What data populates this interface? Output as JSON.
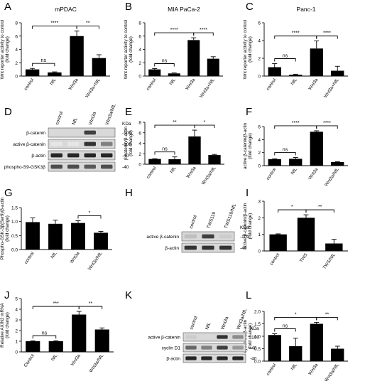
{
  "chart_data": [
    {
      "letter": "A",
      "type": "bar",
      "title": "mPDAC",
      "ylabel": [
        "Wnt reporter activity to control",
        "(fold change)"
      ],
      "categories": [
        "control",
        "NfL",
        "Wnt3a",
        "Wnt3a+NfL"
      ],
      "values": [
        1.0,
        0.55,
        6.0,
        2.7
      ],
      "errors": [
        0.15,
        0.08,
        0.75,
        0.5
      ],
      "ylim": [
        0,
        8
      ],
      "yticks": [
        0,
        2,
        4,
        6,
        8
      ],
      "brackets": [
        {
          "from": 0,
          "to": 1,
          "label": "ns"
        },
        {
          "from": 0,
          "to": 2,
          "label": "****"
        },
        {
          "from": 2,
          "to": 3,
          "label": "**"
        }
      ]
    },
    {
      "letter": "B",
      "type": "bar",
      "title": "MIA PaCa-2",
      "ylabel": [
        "Wnt reporter activity to control",
        "(fold change)"
      ],
      "categories": [
        "control",
        "NfL",
        "Wnt3a",
        "Wnt3a+NfL"
      ],
      "values": [
        1.0,
        0.4,
        5.4,
        2.6
      ],
      "errors": [
        0.12,
        0.07,
        0.35,
        0.3
      ],
      "ylim": [
        0,
        8
      ],
      "yticks": [
        0,
        2,
        4,
        6,
        8
      ],
      "brackets": [
        {
          "from": 0,
          "to": 1,
          "label": "ns"
        },
        {
          "from": 0,
          "to": 2,
          "label": "****"
        },
        {
          "from": 2,
          "to": 3,
          "label": "****"
        }
      ]
    },
    {
      "letter": "C",
      "type": "bar",
      "title": "Panc-1",
      "ylabel": [
        "Wnt reporter activity to control",
        "(fold change)"
      ],
      "categories": [
        "control",
        "NfL",
        "Wnt3a",
        "Wnt3a+NfL"
      ],
      "values": [
        1.0,
        0.15,
        3.1,
        0.6
      ],
      "errors": [
        0.4,
        0.06,
        0.85,
        0.5
      ],
      "ylim": [
        0,
        6
      ],
      "yticks": [
        0,
        2,
        4,
        6
      ],
      "brackets": [
        {
          "from": 0,
          "to": 1,
          "label": "ns"
        },
        {
          "from": 0,
          "to": 2,
          "label": "****"
        },
        {
          "from": 2,
          "to": 3,
          "label": "****"
        }
      ]
    },
    {
      "letter": "E",
      "type": "bar",
      "title": "",
      "ylabel": [
        "β-catenin/β-actin",
        "(fold change)"
      ],
      "categories": [
        "control",
        "NfL",
        "Wnt3a",
        "Wnt3a/NfL"
      ],
      "values": [
        1.0,
        0.95,
        5.3,
        1.75
      ],
      "errors": [
        0.05,
        0.45,
        1.2,
        0.12
      ],
      "ylim": [
        0,
        8
      ],
      "yticks": [
        0,
        2,
        4,
        6,
        8
      ],
      "brackets": [
        {
          "from": 0,
          "to": 1,
          "label": "ns"
        },
        {
          "from": 0,
          "to": 2,
          "label": "**"
        },
        {
          "from": 2,
          "to": 3,
          "label": "*"
        }
      ]
    },
    {
      "letter": "F",
      "type": "bar",
      "title": "",
      "ylabel": [
        "active β-catenin/β-actin",
        "(fold change)"
      ],
      "categories": [
        "control",
        "NfL",
        "Wnt3a",
        "Wnt3a/NfL"
      ],
      "values": [
        1.0,
        1.05,
        5.2,
        0.55
      ],
      "errors": [
        0.05,
        0.2,
        0.15,
        0.05
      ],
      "ylim": [
        0,
        6
      ],
      "yticks": [
        0,
        2,
        4,
        6
      ],
      "brackets": [
        {
          "from": 0,
          "to": 1,
          "label": "ns"
        },
        {
          "from": 0,
          "to": 2,
          "label": "****"
        },
        {
          "from": 2,
          "to": 3,
          "label": "****"
        }
      ]
    },
    {
      "letter": "G",
      "type": "bar",
      "title": "",
      "ylabel": [
        "Phospho-GSK-3β(Ser9)/β-actin",
        "(fold change)"
      ],
      "categories": [
        "control",
        "NfL",
        "Wnt3a",
        "Wnt3a/NfL"
      ],
      "values": [
        0.98,
        0.92,
        0.95,
        0.6
      ],
      "errors": [
        0.15,
        0.13,
        0.08,
        0.05
      ],
      "ylim": [
        0,
        1.5
      ],
      "yticks": [
        0,
        0.5,
        1.0,
        1.5
      ],
      "brackets": [
        {
          "from": 2,
          "to": 3,
          "label": "*"
        }
      ]
    },
    {
      "letter": "I",
      "type": "bar",
      "title": "",
      "ylabel": [
        "active β-catenin/β-actin",
        "(fold change)"
      ],
      "categories": [
        "control",
        "TWS",
        "TWS/NfL"
      ],
      "values": [
        1.0,
        2.0,
        0.45
      ],
      "errors": [
        0.03,
        0.18,
        0.25
      ],
      "ylim": [
        0,
        3
      ],
      "yticks": [
        0,
        1,
        2,
        3
      ],
      "brackets": [
        {
          "from": 0,
          "to": 1,
          "label": "*"
        },
        {
          "from": 1,
          "to": 2,
          "label": "**"
        }
      ]
    },
    {
      "letter": "J",
      "type": "bar",
      "title": "",
      "ylabel": [
        "Relative AXIN2 mRNA",
        "(fold change)"
      ],
      "categories": [
        "Control",
        "NfL",
        "Wnt3a",
        "Wnt3a/NfL"
      ],
      "values": [
        1.0,
        1.0,
        3.5,
        2.1
      ],
      "errors": [
        0.04,
        0.05,
        0.3,
        0.15
      ],
      "ylim": [
        0,
        5
      ],
      "yticks": [
        0,
        1,
        2,
        3,
        4,
        5
      ],
      "brackets": [
        {
          "from": 0,
          "to": 1,
          "label": "ns"
        },
        {
          "from": 0,
          "to": 2,
          "label": "***"
        },
        {
          "from": 2,
          "to": 3,
          "label": "**"
        }
      ]
    },
    {
      "letter": "L",
      "type": "bar",
      "title": "",
      "ylabel": [
        "cyclin D1/β-actin",
        "(fold change)"
      ],
      "categories": [
        "control",
        "NfL",
        "Wnt3a",
        "Wnt3a/NfL"
      ],
      "values": [
        1.05,
        0.6,
        1.5,
        0.5
      ],
      "errors": [
        0.05,
        0.32,
        0.06,
        0.1
      ],
      "ylim": [
        0,
        2.0
      ],
      "yticks": [
        0,
        0.5,
        1.0,
        1.5,
        2.0
      ],
      "brackets": [
        {
          "from": 0,
          "to": 1,
          "label": "ns"
        },
        {
          "from": 0,
          "to": 2,
          "label": "*"
        },
        {
          "from": 2,
          "to": 3,
          "label": "**"
        }
      ]
    }
  ],
  "blots": [
    {
      "letter": "D",
      "lanes": [
        "control",
        "NfL",
        "Wnt3a",
        "Wnt3a/NfL"
      ],
      "rows": [
        "β-catenin",
        "active β-catenin",
        "β-actin",
        "phospho-S9-GSK3β"
      ],
      "kda_header": "KDa",
      "kda": [
        "100",
        "100",
        "40",
        "40"
      ]
    },
    {
      "letter": "H",
      "lanes": [
        "control",
        "TWS119",
        "TWS119/NfL"
      ],
      "rows": [
        "active β-catenin",
        "β-actin"
      ],
      "kda_header": "KDa",
      "kda": [
        "100",
        "40"
      ]
    },
    {
      "letter": "K",
      "lanes": [
        "control",
        "NfL",
        "Wnt3a",
        "Wnt3a/NfL"
      ],
      "rows": [
        "active β-catenin",
        "cyclin D1",
        "β-actin"
      ],
      "kda_header": "KDa",
      "kda": [
        "100",
        "40",
        "40"
      ]
    }
  ]
}
